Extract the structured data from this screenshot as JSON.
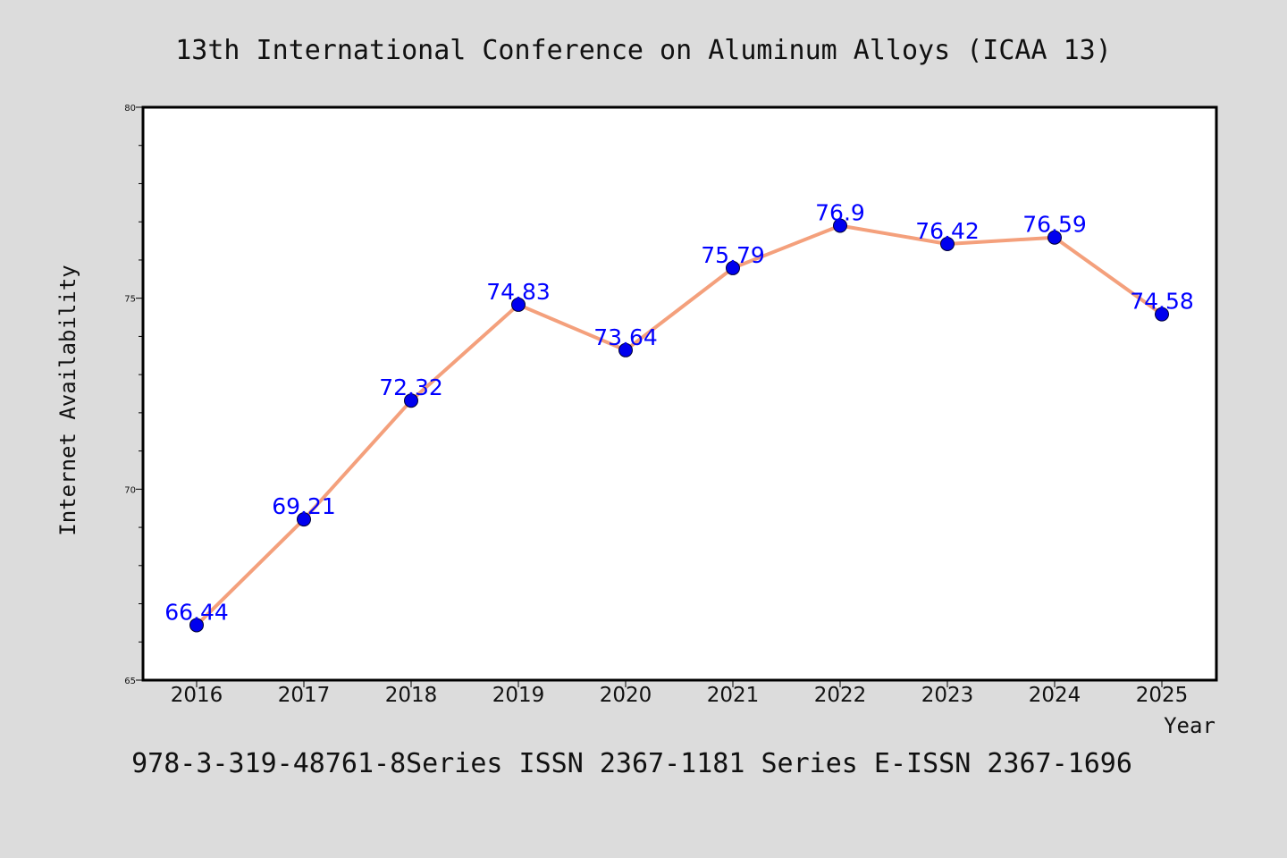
{
  "chart_data": {
    "type": "line",
    "title": "13th International Conference on Aluminum Alloys (ICAA 13)",
    "footer": "978-3-319-48761-8Series ISSN 2367-1181 Series E-ISSN 2367-1696",
    "xlabel": "Year",
    "ylabel": "Internet Availability",
    "categories": [
      "2016",
      "2017",
      "2018",
      "2019",
      "2020",
      "2021",
      "2022",
      "2023",
      "2024",
      "2025"
    ],
    "series": [
      {
        "values": [
          66.44,
          69.21,
          72.32,
          74.83,
          73.64,
          75.79,
          76.9,
          76.42,
          76.59,
          74.58
        ],
        "data_labels": [
          "66.44",
          "69.21",
          "72.32",
          "74.83",
          "73.64",
          "75.79",
          "76.9",
          "76.42",
          "76.59",
          "74.58"
        ]
      }
    ],
    "ylim": [
      65,
      80
    ],
    "yticks": [
      65,
      70,
      75,
      80
    ],
    "grid": false,
    "legend": "none",
    "colors": {
      "background": "#dcdcdc",
      "plot_background": "#ffffff",
      "line": "#f4a07c",
      "marker": "#0000ee",
      "data_label": "#0000ff"
    }
  }
}
